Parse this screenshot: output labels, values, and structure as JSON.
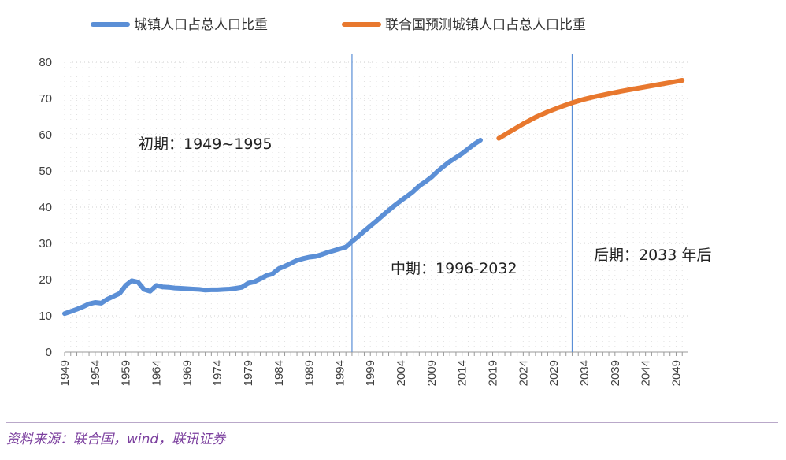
{
  "chart_data": {
    "type": "line",
    "title": "",
    "xlabel": "",
    "ylabel": "",
    "xlim": [
      1949,
      2051
    ],
    "ylim": [
      0,
      80
    ],
    "yticks": [
      0,
      10,
      20,
      30,
      40,
      50,
      60,
      70,
      80
    ],
    "xticks": [
      1949,
      1954,
      1959,
      1964,
      1969,
      1974,
      1979,
      1984,
      1989,
      1994,
      1999,
      2004,
      2009,
      2014,
      2019,
      2024,
      2029,
      2034,
      2039,
      2044,
      2049
    ],
    "grid": "dotted",
    "legend_position": "top",
    "series": [
      {
        "name": "城镇人口占总人口比重",
        "color": "#5b8fd6",
        "x": [
          1949,
          1950,
          1951,
          1952,
          1953,
          1954,
          1955,
          1956,
          1957,
          1958,
          1959,
          1960,
          1961,
          1962,
          1963,
          1964,
          1965,
          1966,
          1967,
          1968,
          1969,
          1970,
          1971,
          1972,
          1973,
          1974,
          1975,
          1976,
          1977,
          1978,
          1979,
          1980,
          1981,
          1982,
          1983,
          1984,
          1985,
          1986,
          1987,
          1988,
          1989,
          1990,
          1991,
          1992,
          1993,
          1994,
          1995,
          1996,
          1997,
          1998,
          1999,
          2000,
          2001,
          2002,
          2003,
          2004,
          2005,
          2006,
          2007,
          2008,
          2009,
          2010,
          2011,
          2012,
          2013,
          2014,
          2015,
          2016,
          2017
        ],
        "values": [
          10.6,
          11.2,
          11.8,
          12.5,
          13.3,
          13.7,
          13.5,
          14.6,
          15.4,
          16.2,
          18.4,
          19.7,
          19.3,
          17.3,
          16.8,
          18.4,
          18.0,
          17.9,
          17.7,
          17.6,
          17.5,
          17.4,
          17.3,
          17.1,
          17.2,
          17.2,
          17.3,
          17.4,
          17.6,
          17.9,
          19.0,
          19.4,
          20.2,
          21.1,
          21.6,
          23.0,
          23.7,
          24.5,
          25.3,
          25.8,
          26.2,
          26.4,
          26.9,
          27.5,
          28.0,
          28.5,
          29.0,
          30.5,
          31.9,
          33.4,
          34.8,
          36.2,
          37.7,
          39.1,
          40.5,
          41.8,
          43.0,
          44.3,
          45.9,
          47.0,
          48.3,
          49.9,
          51.3,
          52.6,
          53.7,
          54.8,
          56.1,
          57.4,
          58.5
        ]
      },
      {
        "name": "联合国预测城镇人口占总人口比重",
        "color": "#e8782e",
        "x": [
          2020,
          2022,
          2024,
          2026,
          2028,
          2030,
          2032,
          2034,
          2036,
          2038,
          2040,
          2042,
          2044,
          2046,
          2048,
          2050
        ],
        "values": [
          59.0,
          61.0,
          63.0,
          64.8,
          66.3,
          67.6,
          68.8,
          69.8,
          70.6,
          71.3,
          72.0,
          72.6,
          73.2,
          73.8,
          74.4,
          75.0
        ]
      }
    ],
    "dividers": [
      1996,
      2032
    ],
    "annotations": {
      "early": "初期：1949~1995",
      "middle": "中期：1996-2032",
      "late": "后期：2033 年后"
    }
  },
  "source": "资料来源：联合国，wind，联讯证券"
}
